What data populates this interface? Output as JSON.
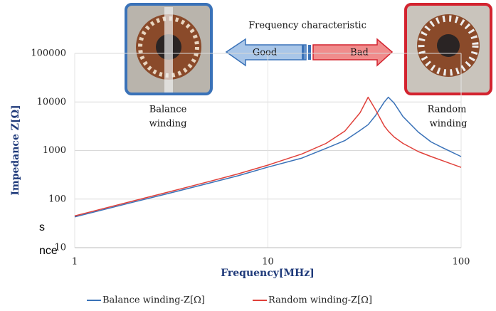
{
  "chart_data": {
    "type": "line",
    "x_label": "Frequency[MHz]",
    "y_label": "Impedance Z[Ω]",
    "x": [
      1,
      2,
      3,
      5,
      7,
      10,
      15,
      20,
      25,
      30,
      33,
      36,
      40,
      42,
      45,
      50,
      60,
      70,
      80,
      100
    ],
    "series": [
      {
        "name": "Balance winding-Z[Ω]",
        "color": "#3a72b8",
        "values": [
          43,
          86,
          128,
          215,
          302,
          456,
          700,
          1110,
          1600,
          2600,
          3400,
          5200,
          10000,
          12500,
          9500,
          5000,
          2400,
          1500,
          1150,
          750
        ]
      },
      {
        "name": "Random winding-Z[Ω]",
        "color": "#e0403a",
        "values": [
          45,
          91,
          137,
          232,
          330,
          500,
          850,
          1400,
          2500,
          6000,
          12500,
          7000,
          3200,
          2500,
          1900,
          1400,
          950,
          750,
          620,
          450
        ]
      }
    ],
    "xlim": [
      1,
      100
    ],
    "xticks": [
      1,
      10,
      100
    ],
    "ylim": [
      10,
      100000
    ],
    "yticks": [
      10,
      100,
      1000,
      10000,
      100000
    ],
    "log_x": true,
    "log_y": true,
    "grid": true,
    "legend": "bottom"
  },
  "illustration": {
    "caption": "Frequency characteristic",
    "good": "Good",
    "bad": "Bad",
    "left_label": [
      "Balance",
      "winding"
    ],
    "right_label": [
      "Random",
      "winding"
    ]
  },
  "overlay_text": [
    "s",
    "nce"
  ]
}
